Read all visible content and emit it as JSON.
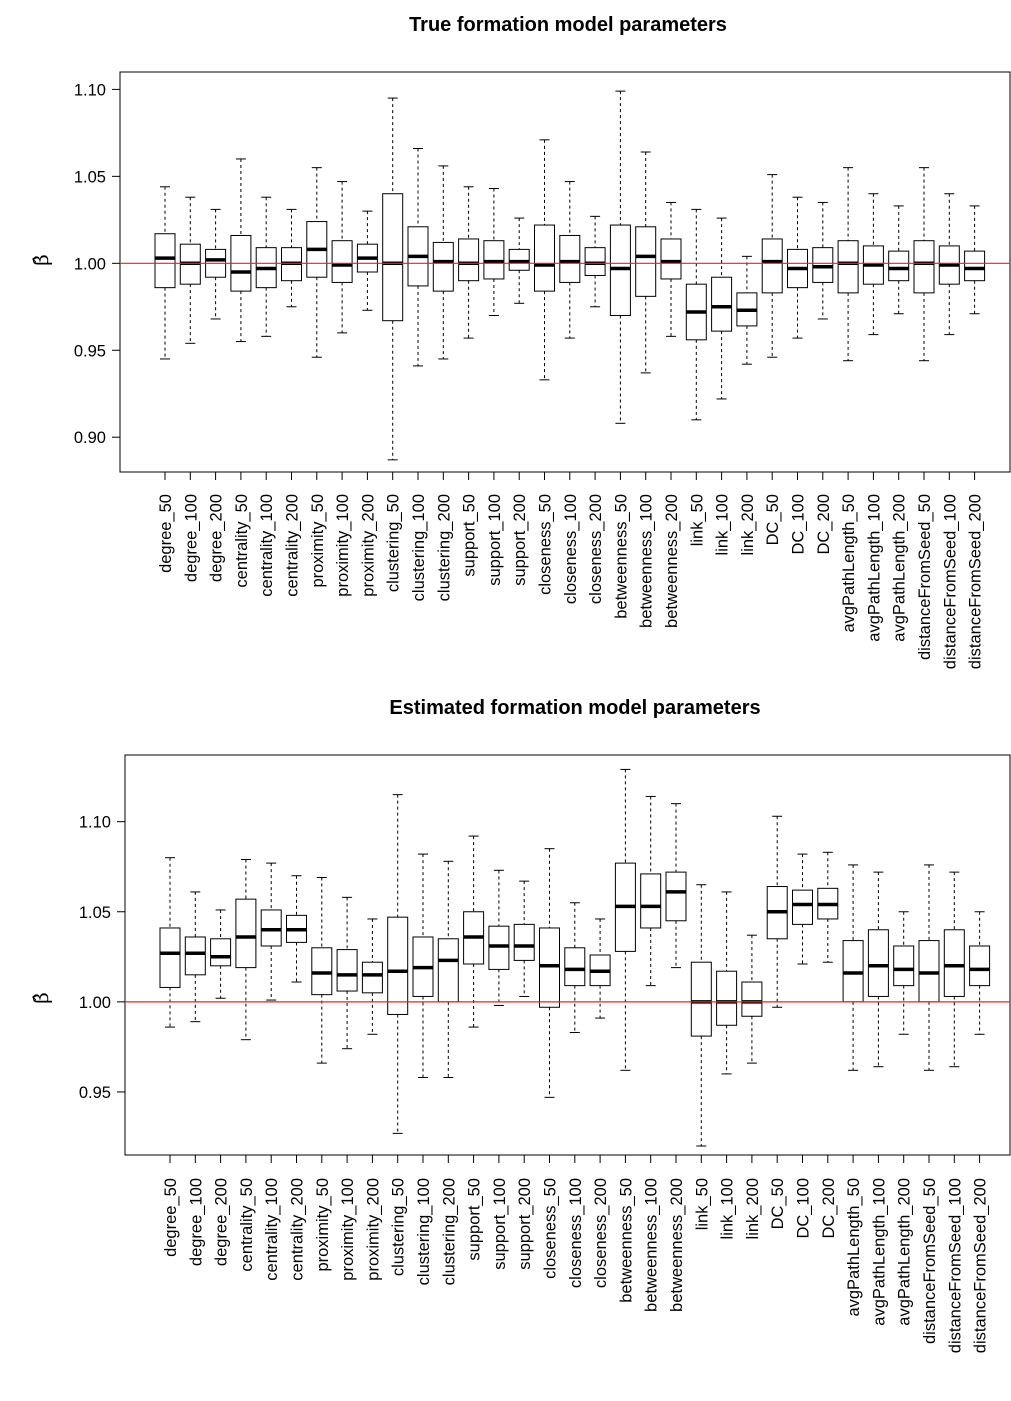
{
  "chart_data": [
    {
      "type": "boxplot",
      "title": "True formation model parameters",
      "ylabel": "β̂",
      "ylim": [
        0.88,
        1.11
      ],
      "yticks": [
        0.9,
        0.95,
        1.0,
        1.05,
        1.1
      ],
      "reference_line": {
        "y": 1.0,
        "color": "#e8251e"
      },
      "categories": [
        "degree_50",
        "degree_100",
        "degree_200",
        "centrality_50",
        "centrality_100",
        "centrality_200",
        "proximity_50",
        "proximity_100",
        "proximity_200",
        "clustering_50",
        "clustering_100",
        "clustering_200",
        "support_50",
        "support_100",
        "support_200",
        "closeness_50",
        "closeness_100",
        "closeness_200",
        "betweenness_50",
        "betweenness_100",
        "betweenness_200",
        "link_50",
        "link_100",
        "link_200",
        "DC_50",
        "DC_100",
        "DC_200",
        "avgPathLength_50",
        "avgPathLength_100",
        "avgPathLength_200",
        "distanceFromSeed_50",
        "distanceFromSeed_100",
        "distanceFromSeed_200"
      ],
      "boxes": [
        [
          0.945,
          0.986,
          1.003,
          1.017,
          1.044
        ],
        [
          0.954,
          0.988,
          1.0,
          1.011,
          1.038
        ],
        [
          0.968,
          0.992,
          1.002,
          1.008,
          1.031
        ],
        [
          0.955,
          0.984,
          0.995,
          1.016,
          1.06
        ],
        [
          0.958,
          0.986,
          0.997,
          1.009,
          1.038
        ],
        [
          0.975,
          0.99,
          1.0,
          1.009,
          1.031
        ],
        [
          0.946,
          0.992,
          1.008,
          1.024,
          1.055
        ],
        [
          0.96,
          0.989,
          0.999,
          1.013,
          1.047
        ],
        [
          0.973,
          0.995,
          1.003,
          1.011,
          1.03
        ],
        [
          0.887,
          0.967,
          1.0,
          1.04,
          1.095
        ],
        [
          0.941,
          0.987,
          1.004,
          1.021,
          1.066
        ],
        [
          0.945,
          0.984,
          1.001,
          1.012,
          1.056
        ],
        [
          0.957,
          0.99,
          1.0,
          1.014,
          1.044
        ],
        [
          0.97,
          0.991,
          1.001,
          1.013,
          1.043
        ],
        [
          0.977,
          0.996,
          1.001,
          1.008,
          1.026
        ],
        [
          0.933,
          0.984,
          0.999,
          1.022,
          1.071
        ],
        [
          0.957,
          0.989,
          1.001,
          1.016,
          1.047
        ],
        [
          0.975,
          0.993,
          1.0,
          1.009,
          1.027
        ],
        [
          0.908,
          0.97,
          0.997,
          1.022,
          1.099
        ],
        [
          0.937,
          0.981,
          1.004,
          1.021,
          1.064
        ],
        [
          0.958,
          0.991,
          1.001,
          1.014,
          1.035
        ],
        [
          0.91,
          0.956,
          0.972,
          0.988,
          1.031
        ],
        [
          0.922,
          0.961,
          0.975,
          0.992,
          1.026
        ],
        [
          0.942,
          0.964,
          0.973,
          0.983,
          1.004
        ],
        [
          0.946,
          0.983,
          1.001,
          1.014,
          1.051
        ],
        [
          0.957,
          0.986,
          0.997,
          1.008,
          1.038
        ],
        [
          0.968,
          0.989,
          0.998,
          1.009,
          1.035
        ],
        [
          0.944,
          0.983,
          1.0,
          1.013,
          1.055
        ],
        [
          0.959,
          0.988,
          0.999,
          1.01,
          1.04
        ],
        [
          0.971,
          0.99,
          0.997,
          1.007,
          1.033
        ],
        [
          0.944,
          0.983,
          1.0,
          1.013,
          1.055
        ],
        [
          0.959,
          0.988,
          0.999,
          1.01,
          1.04
        ],
        [
          0.971,
          0.99,
          0.997,
          1.007,
          1.033
        ]
      ]
    },
    {
      "type": "boxplot",
      "title": "Estimated formation model parameters",
      "ylabel": "β̂",
      "ylim": [
        0.915,
        1.137
      ],
      "yticks": [
        0.95,
        1.0,
        1.05,
        1.1
      ],
      "reference_line": {
        "y": 1.0,
        "color": "#e8251e"
      },
      "categories": [
        "degree_50",
        "degree_100",
        "degree_200",
        "centrality_50",
        "centrality_100",
        "centrality_200",
        "proximity_50",
        "proximity_100",
        "proximity_200",
        "clustering_50",
        "clustering_100",
        "clustering_200",
        "support_50",
        "support_100",
        "support_200",
        "closeness_50",
        "closeness_100",
        "closeness_200",
        "betweenness_50",
        "betweenness_100",
        "betweenness_200",
        "link_50",
        "link_100",
        "link_200",
        "DC_50",
        "DC_100",
        "DC_200",
        "avgPathLength_50",
        "avgPathLength_100",
        "avgPathLength_200",
        "distanceFromSeed_50",
        "distanceFromSeed_100",
        "distanceFromSeed_200"
      ],
      "boxes": [
        [
          0.986,
          1.008,
          1.027,
          1.041,
          1.08
        ],
        [
          0.989,
          1.015,
          1.027,
          1.036,
          1.061
        ],
        [
          1.002,
          1.02,
          1.025,
          1.035,
          1.051
        ],
        [
          0.979,
          1.019,
          1.036,
          1.057,
          1.079
        ],
        [
          1.001,
          1.031,
          1.04,
          1.051,
          1.077
        ],
        [
          1.011,
          1.033,
          1.04,
          1.048,
          1.07
        ],
        [
          0.966,
          1.004,
          1.016,
          1.03,
          1.069
        ],
        [
          0.974,
          1.006,
          1.015,
          1.029,
          1.058
        ],
        [
          0.982,
          1.005,
          1.015,
          1.022,
          1.046
        ],
        [
          0.927,
          0.993,
          1.017,
          1.047,
          1.115
        ],
        [
          0.958,
          1.003,
          1.019,
          1.036,
          1.082
        ],
        [
          0.958,
          1.0,
          1.023,
          1.035,
          1.078
        ],
        [
          0.986,
          1.021,
          1.036,
          1.05,
          1.092
        ],
        [
          0.998,
          1.018,
          1.031,
          1.042,
          1.073
        ],
        [
          1.003,
          1.023,
          1.031,
          1.043,
          1.067
        ],
        [
          0.947,
          0.997,
          1.02,
          1.041,
          1.085
        ],
        [
          0.983,
          1.009,
          1.018,
          1.03,
          1.055
        ],
        [
          0.991,
          1.009,
          1.017,
          1.026,
          1.046
        ],
        [
          0.962,
          1.028,
          1.053,
          1.077,
          1.129
        ],
        [
          1.009,
          1.041,
          1.053,
          1.071,
          1.114
        ],
        [
          1.019,
          1.045,
          1.061,
          1.072,
          1.11
        ],
        [
          0.92,
          0.981,
          1.0,
          1.022,
          1.065
        ],
        [
          0.96,
          0.987,
          1.0,
          1.017,
          1.061
        ],
        [
          0.966,
          0.992,
          1.0,
          1.011,
          1.037
        ],
        [
          0.997,
          1.035,
          1.05,
          1.064,
          1.103
        ],
        [
          1.021,
          1.043,
          1.054,
          1.062,
          1.082
        ],
        [
          1.022,
          1.046,
          1.054,
          1.063,
          1.083
        ],
        [
          0.962,
          1.0,
          1.016,
          1.034,
          1.076
        ],
        [
          0.964,
          1.003,
          1.02,
          1.04,
          1.072
        ],
        [
          0.982,
          1.009,
          1.018,
          1.031,
          1.05
        ],
        [
          0.962,
          1.0,
          1.016,
          1.034,
          1.076
        ],
        [
          0.964,
          1.003,
          1.02,
          1.04,
          1.072
        ],
        [
          0.982,
          1.009,
          1.018,
          1.031,
          1.05
        ]
      ]
    }
  ]
}
